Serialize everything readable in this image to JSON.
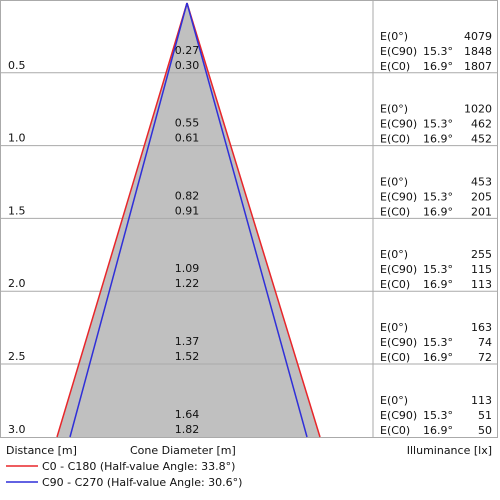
{
  "headers": {
    "distance": "Distance [m]",
    "cone_diameter": "Cone Diameter [m]",
    "illuminance": "Illuminance [lx]"
  },
  "illuminance_labels": {
    "e0": "E(0°)",
    "ec90": "E(C90)",
    "ec0": "E(C0)"
  },
  "legend": [
    {
      "label": "C0 - C180 (Half-value Angle: 33.8°)",
      "color": "#e8262a"
    },
    {
      "label": "C90 - C270 (Half-value Angle: 30.6°)",
      "color": "#2f2fd8"
    }
  ],
  "colors": {
    "cone_fill": "#c0c0c0",
    "grid": "#aaaaaa"
  },
  "rows": [
    {
      "distance": "0.5",
      "d1": "0.27",
      "d2": "0.30",
      "e0": "4079",
      "ec90_angle": "15.3°",
      "ec90": "1848",
      "ec0_angle": "16.9°",
      "ec0": "1807"
    },
    {
      "distance": "1.0",
      "d1": "0.55",
      "d2": "0.61",
      "e0": "1020",
      "ec90_angle": "15.3°",
      "ec90": "462",
      "ec0_angle": "16.9°",
      "ec0": "452"
    },
    {
      "distance": "1.5",
      "d1": "0.82",
      "d2": "0.91",
      "e0": "453",
      "ec90_angle": "15.3°",
      "ec90": "205",
      "ec0_angle": "16.9°",
      "ec0": "201"
    },
    {
      "distance": "2.0",
      "d1": "1.09",
      "d2": "1.22",
      "e0": "255",
      "ec90_angle": "15.3°",
      "ec90": "115",
      "ec0_angle": "16.9°",
      "ec0": "113"
    },
    {
      "distance": "2.5",
      "d1": "1.37",
      "d2": "1.52",
      "e0": "163",
      "ec90_angle": "15.3°",
      "ec90": "74",
      "ec0_angle": "16.9°",
      "ec0": "72"
    },
    {
      "distance": "3.0",
      "d1": "1.64",
      "d2": "1.82",
      "e0": "113",
      "ec90_angle": "15.3°",
      "ec90": "51",
      "ec0_angle": "16.9°",
      "ec0": "50"
    }
  ]
}
